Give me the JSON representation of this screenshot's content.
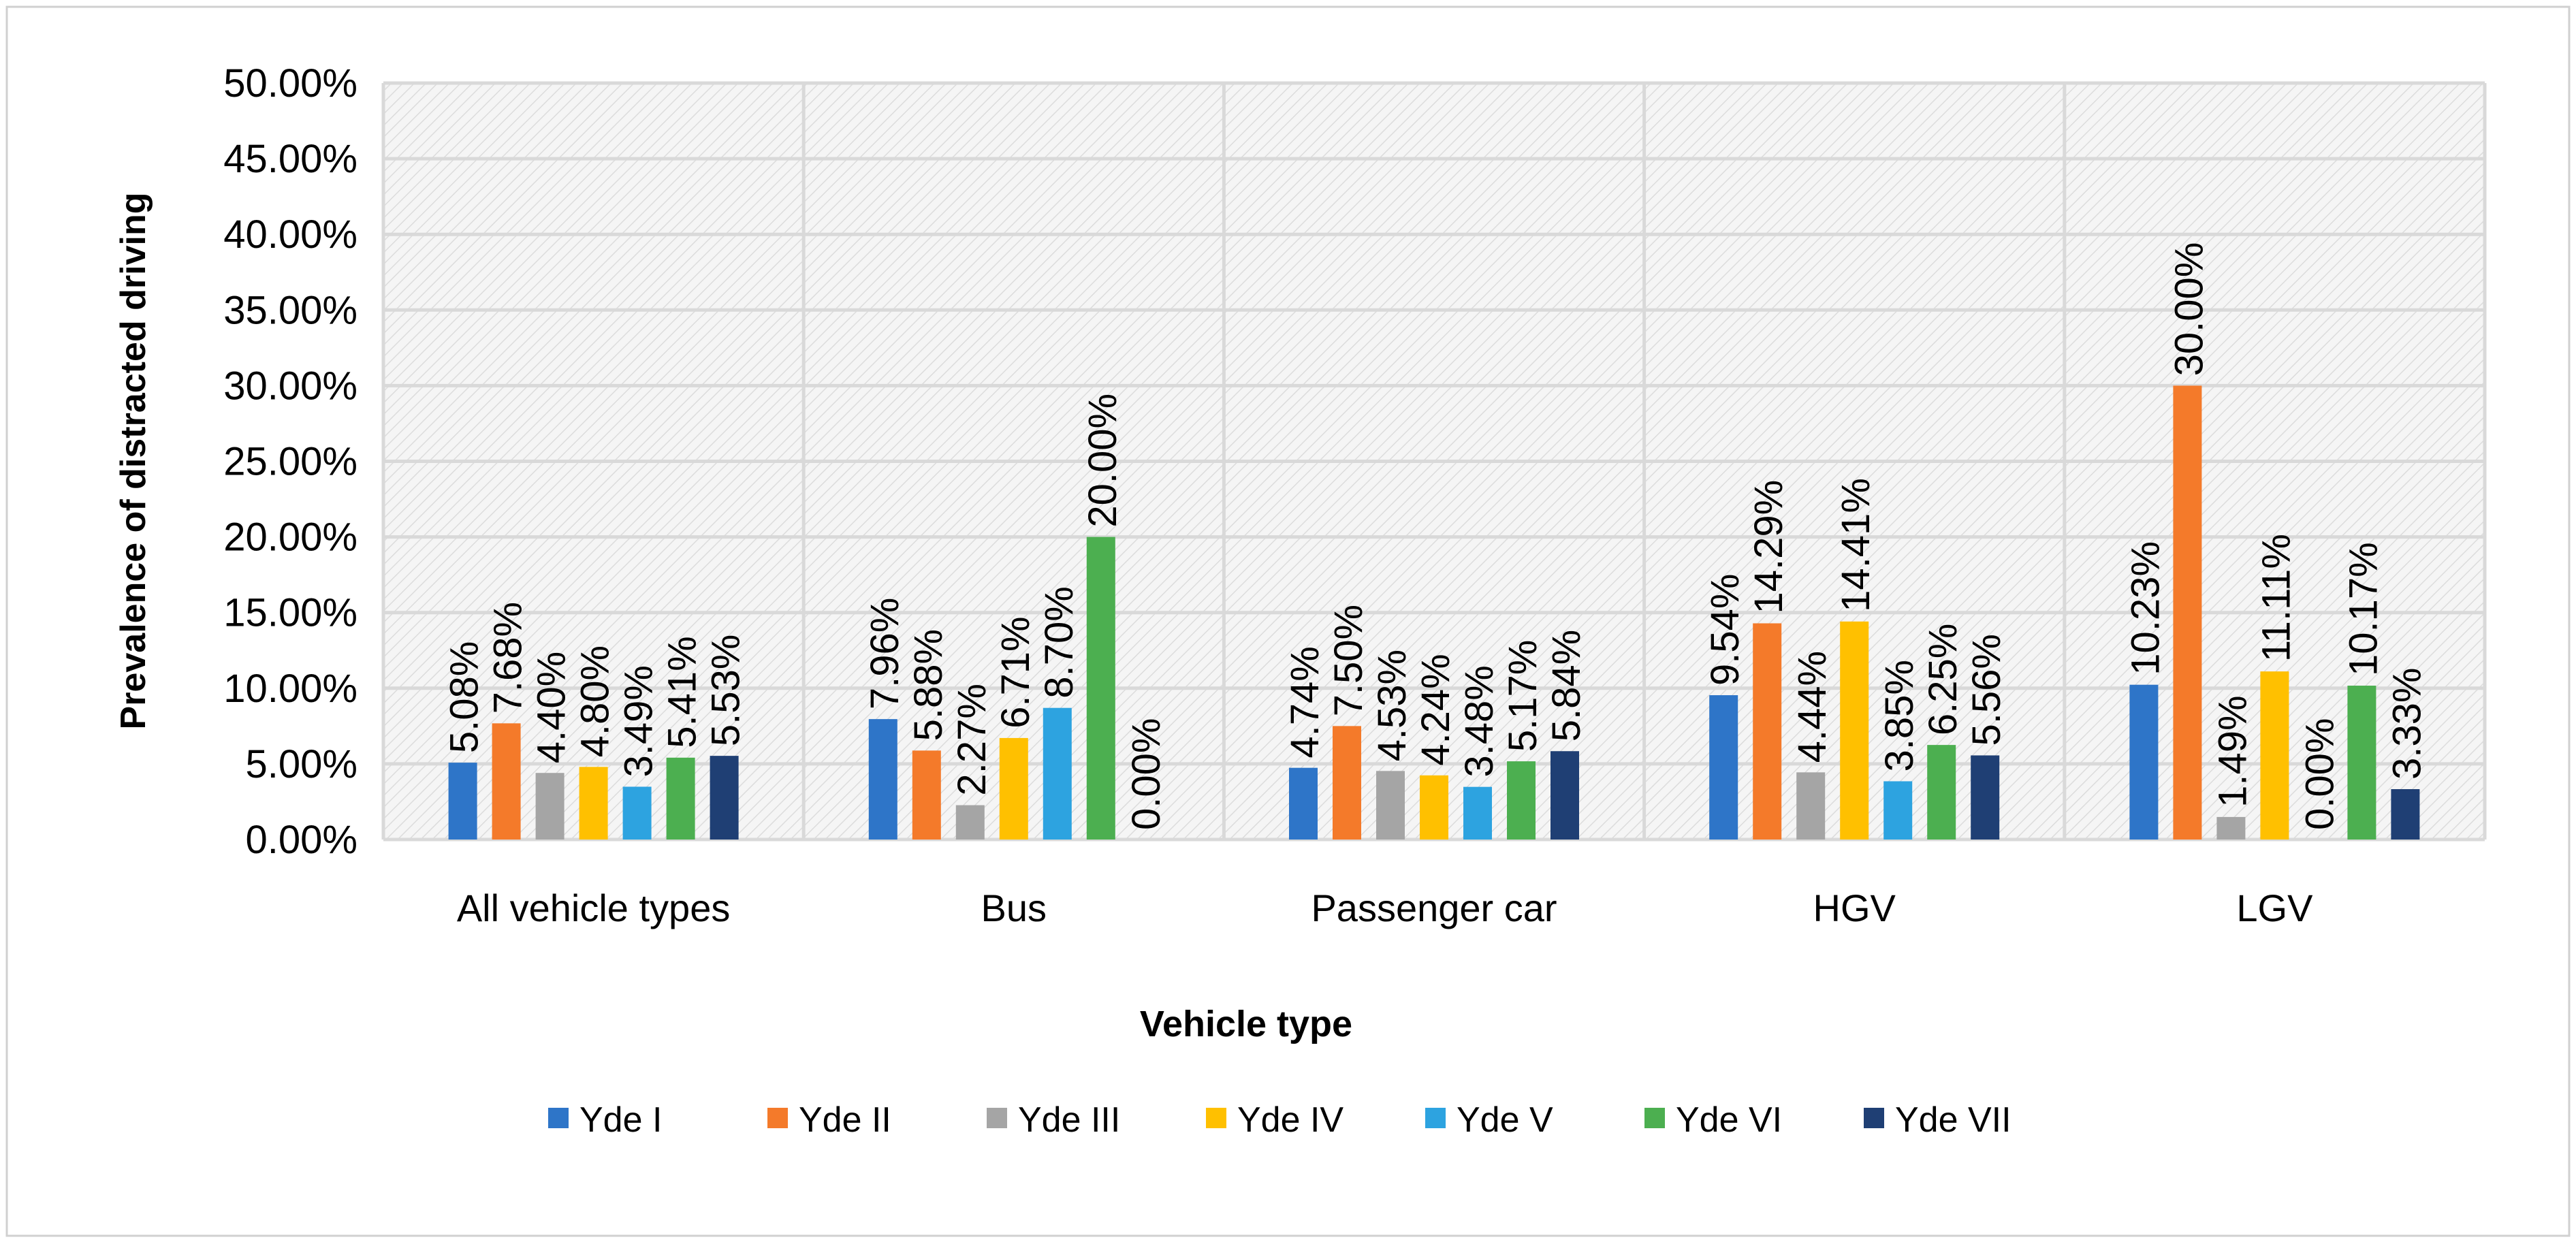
{
  "chart_data": {
    "type": "bar",
    "title": "",
    "xlabel": "Vehicle type",
    "ylabel": "Prevalence of distracted driving",
    "ylim": [
      0,
      50
    ],
    "y_tick_values": [
      0,
      5,
      10,
      15,
      20,
      25,
      30,
      35,
      40,
      45,
      50
    ],
    "y_tick_labels": [
      "0.00%",
      "5.00%",
      "10.00%",
      "15.00%",
      "20.00%",
      "25.00%",
      "30.00%",
      "35.00%",
      "40.00%",
      "45.00%",
      "50.00%"
    ],
    "grid": true,
    "legend_position": "bottom",
    "categories": [
      "All vehicle types",
      "Bus",
      "Passenger car",
      "HGV",
      "LGV"
    ],
    "series": [
      {
        "name": "Yde I",
        "color": "#2E75C8",
        "values": [
          5.08,
          7.96,
          4.74,
          9.54,
          10.23
        ],
        "labels": [
          "5.08%",
          "7.96%",
          "4.74%",
          "9.54%",
          "10.23%"
        ]
      },
      {
        "name": "Yde II",
        "color": "#F47A2A",
        "values": [
          7.68,
          5.88,
          7.5,
          14.29,
          30.0
        ],
        "labels": [
          "7.68%",
          "5.88%",
          "7.50%",
          "14.29%",
          "30.00%"
        ]
      },
      {
        "name": "Yde III",
        "color": "#A5A5A5",
        "values": [
          4.4,
          2.27,
          4.53,
          4.44,
          1.49
        ],
        "labels": [
          "4.40%",
          "2.27%",
          "4.53%",
          "4.44%",
          "1.49%"
        ]
      },
      {
        "name": "Yde IV",
        "color": "#FFC000",
        "values": [
          4.8,
          6.71,
          4.24,
          14.41,
          11.11
        ],
        "labels": [
          "4.80%",
          "6.71%",
          "4.24%",
          "14.41%",
          "11.11%"
        ]
      },
      {
        "name": "Yde V",
        "color": "#2DA3E0",
        "values": [
          3.49,
          8.7,
          3.48,
          3.85,
          0.0
        ],
        "labels": [
          "3.49%",
          "8.70%",
          "3.48%",
          "3.85%",
          "0.00%"
        ]
      },
      {
        "name": "Yde VI",
        "color": "#4CAF50",
        "values": [
          5.41,
          20.0,
          5.17,
          6.25,
          10.17
        ],
        "labels": [
          "5.41%",
          "20.00%",
          "5.17%",
          "6.25%",
          "10.17%"
        ]
      },
      {
        "name": "Yde VII",
        "color": "#1F3F74",
        "values": [
          5.53,
          0.0,
          5.84,
          5.56,
          3.33
        ],
        "labels": [
          "5.53%",
          "0.00%",
          "5.84%",
          "5.56%",
          "3.33%"
        ]
      }
    ]
  }
}
